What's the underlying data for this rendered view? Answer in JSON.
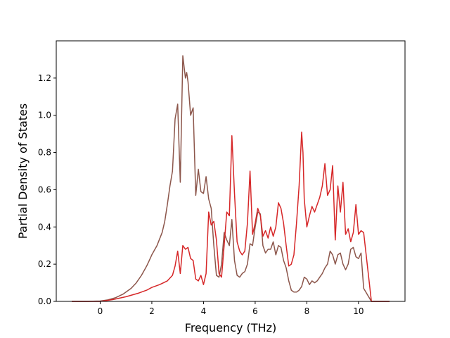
{
  "chart_data": {
    "type": "line",
    "title": "",
    "xlabel": "Frequency (THz)",
    "ylabel": "Partial Density of States",
    "xlim": [
      -1.7,
      11.8
    ],
    "ylim": [
      0.0,
      1.4
    ],
    "xticks": [
      0,
      2,
      4,
      6,
      8,
      10
    ],
    "yticks": [
      0.0,
      0.2,
      0.4,
      0.6,
      0.8,
      1.0,
      1.2
    ],
    "xtick_labels": [
      "0",
      "2",
      "4",
      "6",
      "8",
      "10"
    ],
    "ytick_labels": [
      "0.0",
      "0.2",
      "0.4",
      "0.6",
      "0.8",
      "1.0",
      "1.2"
    ],
    "grid": false,
    "legend": "none",
    "series": [
      {
        "color": "#8c564b",
        "x": [
          -1.1,
          -0.5,
          0.0,
          0.3,
          0.6,
          0.9,
          1.2,
          1.4,
          1.6,
          1.8,
          1.9,
          2.0,
          2.2,
          2.4,
          2.5,
          2.6,
          2.7,
          2.8,
          2.9,
          3.0,
          3.05,
          3.1,
          3.2,
          3.3,
          3.35,
          3.4,
          3.5,
          3.6,
          3.7,
          3.8,
          3.9,
          4.0,
          4.1,
          4.2,
          4.3,
          4.4,
          4.5,
          4.6,
          4.7,
          4.8,
          4.9,
          5.0,
          5.1,
          5.2,
          5.3,
          5.4,
          5.5,
          5.6,
          5.7,
          5.8,
          5.9,
          6.0,
          6.1,
          6.2,
          6.3,
          6.4,
          6.5,
          6.6,
          6.7,
          6.8,
          6.9,
          7.0,
          7.1,
          7.2,
          7.3,
          7.4,
          7.5,
          7.6,
          7.7,
          7.8,
          7.9,
          8.0,
          8.1,
          8.2,
          8.3,
          8.4,
          8.5,
          8.6,
          8.7,
          8.8,
          8.9,
          9.0,
          9.1,
          9.2,
          9.3,
          9.4,
          9.5,
          9.6,
          9.7,
          9.8,
          9.9,
          10.0,
          10.1,
          10.2,
          10.5,
          11.2
        ],
        "y": [
          0.0,
          0.0,
          0.002,
          0.008,
          0.02,
          0.04,
          0.07,
          0.1,
          0.14,
          0.19,
          0.22,
          0.25,
          0.3,
          0.37,
          0.43,
          0.52,
          0.62,
          0.7,
          0.98,
          1.06,
          0.85,
          0.64,
          1.32,
          1.2,
          1.23,
          1.18,
          1.0,
          1.04,
          0.57,
          0.71,
          0.59,
          0.58,
          0.67,
          0.55,
          0.5,
          0.3,
          0.14,
          0.13,
          0.2,
          0.37,
          0.33,
          0.3,
          0.44,
          0.22,
          0.14,
          0.13,
          0.15,
          0.16,
          0.2,
          0.31,
          0.3,
          0.4,
          0.48,
          0.47,
          0.3,
          0.26,
          0.28,
          0.28,
          0.32,
          0.25,
          0.3,
          0.29,
          0.22,
          0.18,
          0.11,
          0.06,
          0.05,
          0.05,
          0.06,
          0.08,
          0.13,
          0.12,
          0.09,
          0.11,
          0.1,
          0.11,
          0.13,
          0.15,
          0.18,
          0.2,
          0.27,
          0.25,
          0.2,
          0.25,
          0.26,
          0.2,
          0.17,
          0.2,
          0.28,
          0.29,
          0.24,
          0.23,
          0.26,
          0.07,
          0.0,
          0.0
        ]
      },
      {
        "color": "#d62728",
        "x": [
          -1.1,
          -0.5,
          0.0,
          0.5,
          1.0,
          1.5,
          1.8,
          2.0,
          2.3,
          2.6,
          2.8,
          2.9,
          3.0,
          3.1,
          3.2,
          3.3,
          3.4,
          3.5,
          3.6,
          3.7,
          3.8,
          3.9,
          4.0,
          4.1,
          4.2,
          4.3,
          4.4,
          4.5,
          4.6,
          4.7,
          4.8,
          4.9,
          5.0,
          5.1,
          5.2,
          5.3,
          5.4,
          5.5,
          5.6,
          5.7,
          5.8,
          5.9,
          6.0,
          6.1,
          6.2,
          6.3,
          6.4,
          6.5,
          6.6,
          6.7,
          6.8,
          6.9,
          7.0,
          7.1,
          7.2,
          7.3,
          7.4,
          7.5,
          7.6,
          7.7,
          7.8,
          7.85,
          7.9,
          8.0,
          8.1,
          8.2,
          8.3,
          8.4,
          8.5,
          8.6,
          8.7,
          8.8,
          8.9,
          9.0,
          9.1,
          9.2,
          9.3,
          9.4,
          9.5,
          9.6,
          9.7,
          9.8,
          9.9,
          10.0,
          10.1,
          10.2,
          10.5,
          11.2
        ],
        "y": [
          0.0,
          0.0,
          0.0,
          0.01,
          0.025,
          0.045,
          0.06,
          0.075,
          0.09,
          0.11,
          0.14,
          0.19,
          0.27,
          0.15,
          0.3,
          0.28,
          0.29,
          0.23,
          0.22,
          0.12,
          0.11,
          0.14,
          0.09,
          0.15,
          0.48,
          0.41,
          0.43,
          0.33,
          0.15,
          0.13,
          0.3,
          0.48,
          0.46,
          0.89,
          0.58,
          0.32,
          0.27,
          0.25,
          0.27,
          0.42,
          0.7,
          0.36,
          0.42,
          0.5,
          0.46,
          0.35,
          0.38,
          0.34,
          0.4,
          0.35,
          0.4,
          0.53,
          0.5,
          0.42,
          0.3,
          0.19,
          0.2,
          0.25,
          0.42,
          0.62,
          0.91,
          0.8,
          0.55,
          0.4,
          0.46,
          0.51,
          0.48,
          0.52,
          0.56,
          0.62,
          0.74,
          0.57,
          0.6,
          0.73,
          0.33,
          0.62,
          0.48,
          0.64,
          0.36,
          0.39,
          0.32,
          0.37,
          0.52,
          0.36,
          0.38,
          0.37,
          0.0,
          0.0
        ]
      }
    ]
  }
}
